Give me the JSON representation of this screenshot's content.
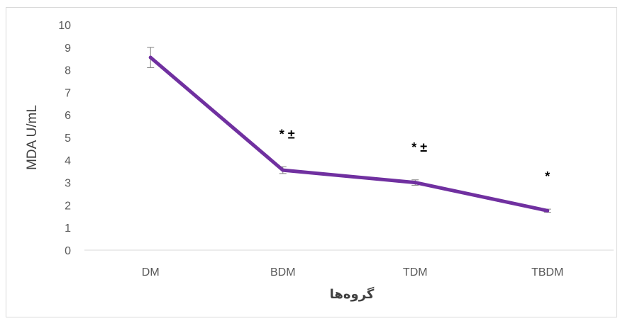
{
  "chart_data": {
    "type": "line",
    "categories": [
      "DM",
      "BDM",
      "TDM",
      "TBDM"
    ],
    "series": [
      {
        "values": [
          8.55,
          3.55,
          3.0,
          1.75
        ],
        "error": [
          0.45,
          0.15,
          0.12,
          0.07
        ],
        "color": "#7030a0"
      }
    ],
    "annotations": [
      "",
      "* ±",
      "* ±",
      "*"
    ],
    "ylabel": "MDA U/mL",
    "xlabel": "گروه‌ها",
    "ylim": [
      0,
      10
    ],
    "yticks": [
      "0",
      "1",
      "2",
      "3",
      "4",
      "5",
      "6",
      "7",
      "8",
      "9",
      "10"
    ],
    "grid": false,
    "legend": "none"
  }
}
